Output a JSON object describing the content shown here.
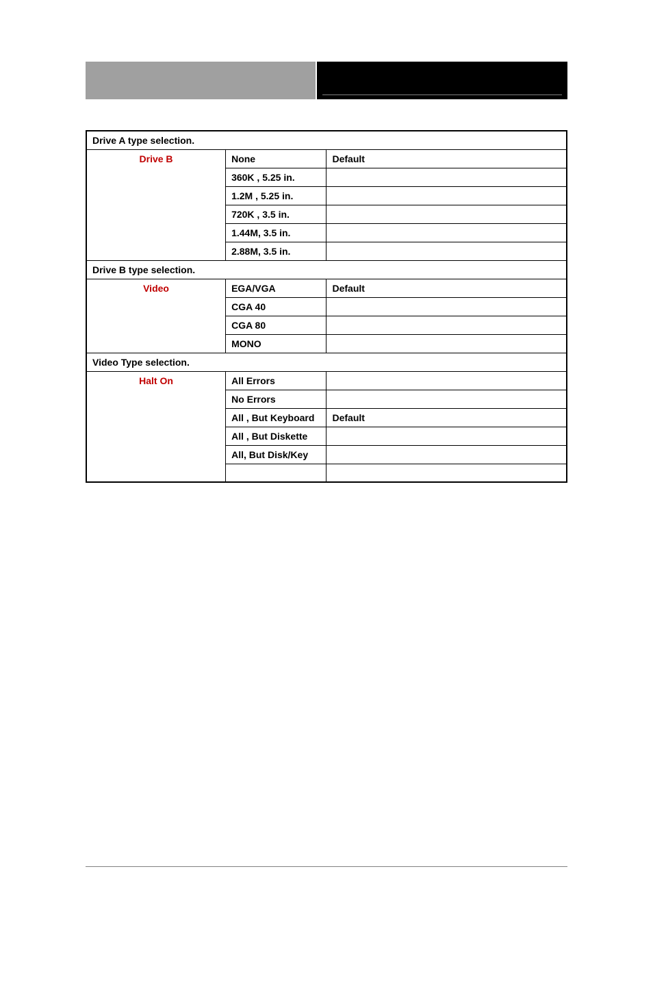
{
  "colors": {
    "header_left_bg": "#a0a0a0",
    "header_right_bg": "#000000",
    "label_color": "#c00000",
    "border_color": "#000000",
    "footer_line_color": "#808080"
  },
  "sections": [
    {
      "header": "Drive A type selection.",
      "label": "Drive B",
      "rows": [
        {
          "value": "None",
          "default": "Default"
        },
        {
          "value": "360K , 5.25 in.",
          "default": ""
        },
        {
          "value": "1.2M , 5.25 in.",
          "default": ""
        },
        {
          "value": "720K , 3.5 in.",
          "default": ""
        },
        {
          "value": "1.44M, 3.5 in.",
          "default": ""
        },
        {
          "value": "2.88M, 3.5 in.",
          "default": ""
        }
      ]
    },
    {
      "header": "Drive B type selection.",
      "label": "Video",
      "rows": [
        {
          "value": "EGA/VGA",
          "default": "Default"
        },
        {
          "value": "CGA 40",
          "default": ""
        },
        {
          "value": "CGA 80",
          "default": ""
        },
        {
          "value": "MONO",
          "default": ""
        }
      ]
    },
    {
      "header": "Video Type selection.",
      "label": "Halt On",
      "rows": [
        {
          "value": "All Errors",
          "default": ""
        },
        {
          "value": "No Errors",
          "default": ""
        },
        {
          "value": "All , But Keyboard",
          "default": "Default"
        },
        {
          "value": "All , But Diskette",
          "default": ""
        },
        {
          "value": "All, But Disk/Key",
          "default": ""
        },
        {
          "value": "",
          "default": ""
        }
      ]
    }
  ]
}
